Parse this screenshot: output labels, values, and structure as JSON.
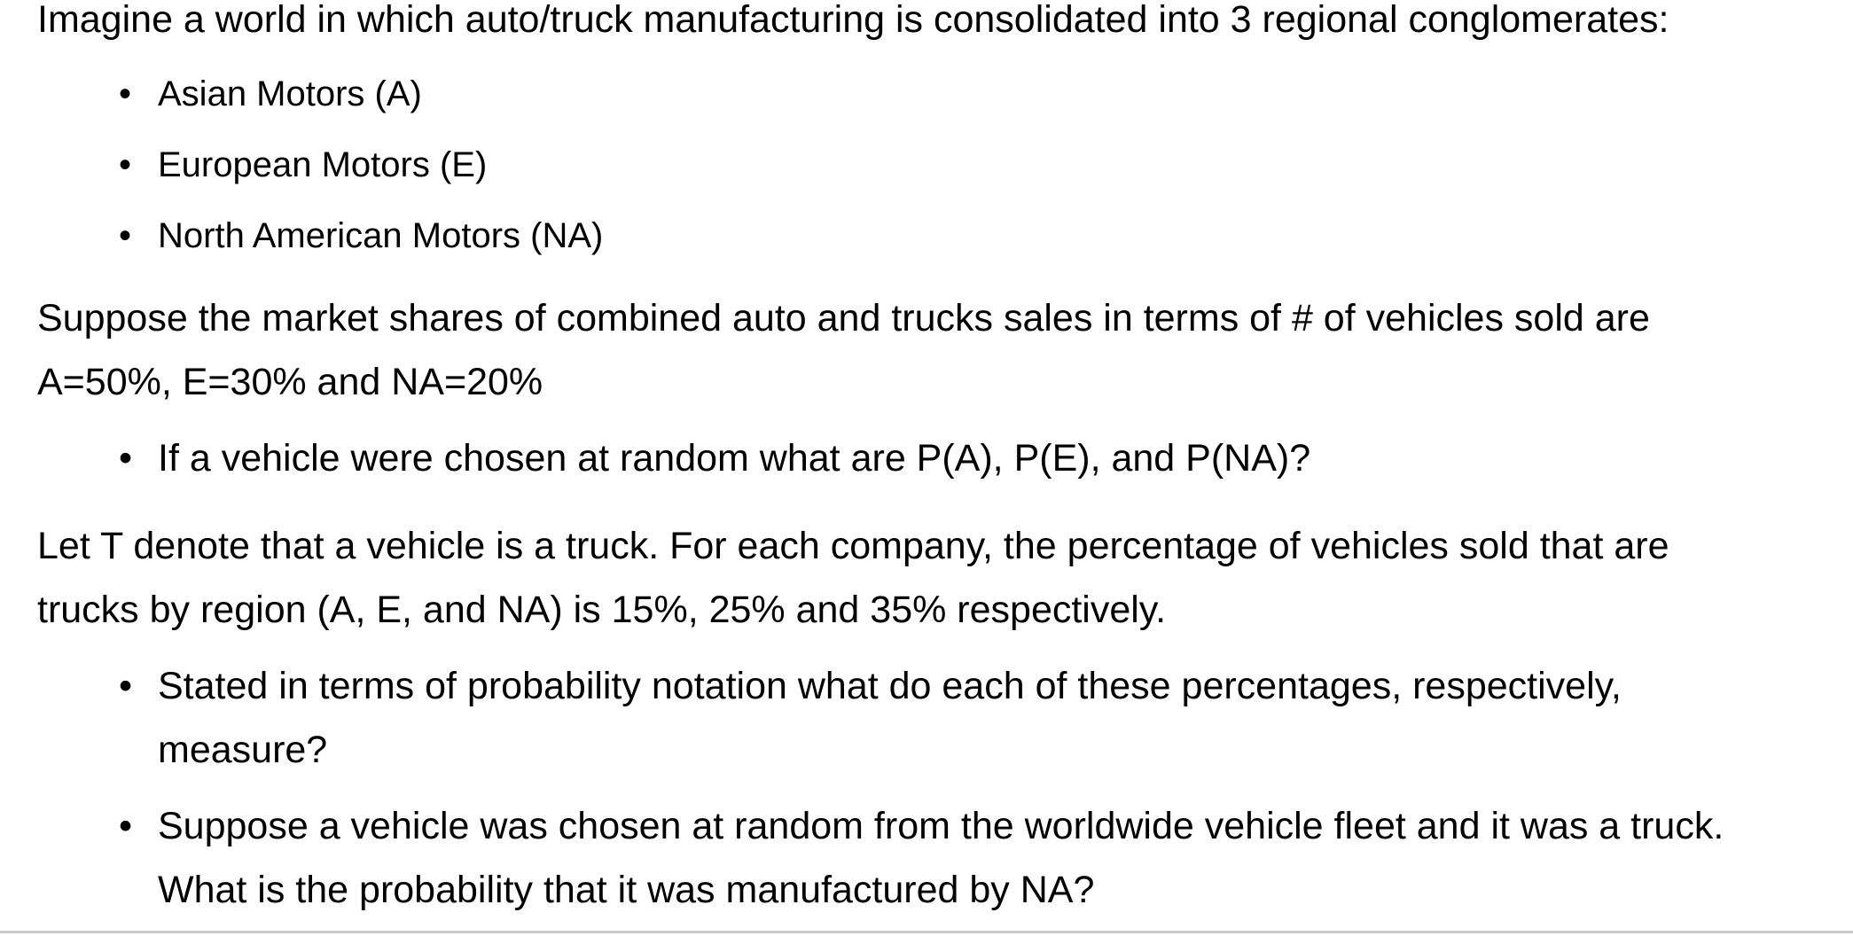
{
  "intro": "Imagine a world in which auto/truck manufacturing is consolidated into 3 regional conglomerates:",
  "conglomerates": [
    "Asian Motors (A)",
    "European Motors (E)",
    "North American Motors (NA)"
  ],
  "market_share_line1": "Suppose the market shares of combined auto and trucks sales in terms of # of vehicles sold are",
  "market_share_line2": "A=50%, E=30% and NA=20%",
  "question1": "If a vehicle were chosen at random what are P(A), P(E), and P(NA)?",
  "truck_line1": "Let T denote that a vehicle is a truck. For each company, the percentage of vehicles sold that are",
  "truck_line2": "trucks by region (A, E, and NA) is 15%, 25% and 35% respectively.",
  "question2_line1": "Stated in terms of probability notation what do each of these percentages, respectively,",
  "question2_line2": "measure?",
  "question3_line1": "Suppose a vehicle was chosen at random from the worldwide vehicle fleet and it was a truck.",
  "question3_line2": "What is the probability that it was manufactured by NA?",
  "bullet_glyph": "•"
}
